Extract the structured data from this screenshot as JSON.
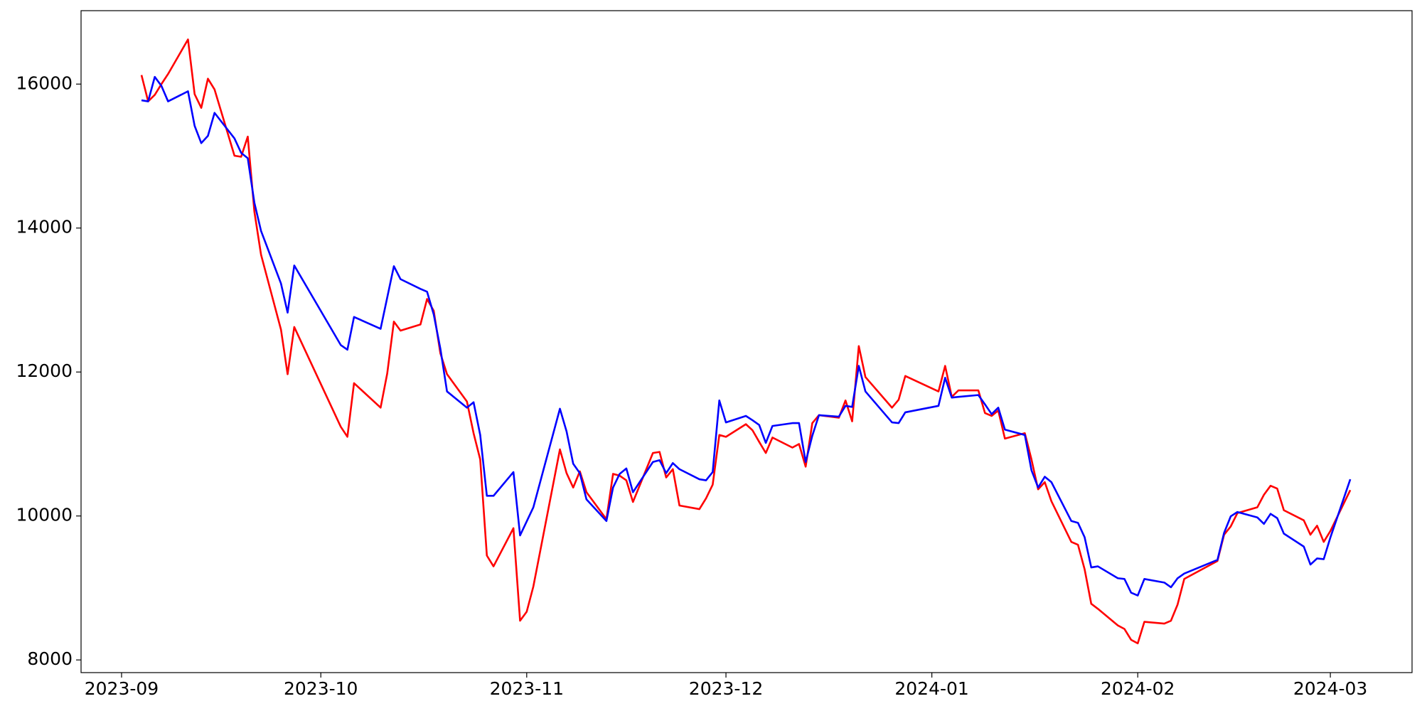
{
  "chart_data": {
    "type": "line",
    "x": [
      3,
      4,
      5,
      6,
      7,
      10,
      11,
      12,
      13,
      14,
      17,
      18,
      19,
      20,
      21,
      24,
      25,
      26,
      33,
      34,
      35,
      39,
      40,
      41,
      42,
      45,
      46,
      47,
      48,
      49,
      52,
      53,
      54,
      55,
      56,
      59,
      60,
      61,
      62,
      66,
      67,
      68,
      69,
      70,
      73,
      74,
      75,
      76,
      77,
      80,
      81,
      82,
      83,
      84,
      87,
      88,
      89,
      90,
      91,
      94,
      95,
      96,
      97,
      98,
      101,
      102,
      103,
      104,
      105,
      108,
      109,
      110,
      111,
      112,
      116,
      117,
      118,
      123,
      124,
      125,
      126,
      129,
      130,
      131,
      132,
      133,
      136,
      137,
      138,
      139,
      140,
      143,
      144,
      145,
      146,
      147,
      150,
      151,
      152,
      153,
      154,
      157,
      158,
      159,
      160,
      165,
      166,
      167,
      168,
      171,
      172,
      173,
      174,
      175,
      178,
      179,
      180,
      181,
      182,
      185
    ],
    "series": [
      {
        "color": "red",
        "values": [
          16126,
          15760,
          15850,
          16000,
          16140,
          16620,
          15860,
          15670,
          16075,
          15925,
          15005,
          14990,
          15270,
          14225,
          13630,
          12590,
          11970,
          12625,
          11240,
          11100,
          11845,
          11505,
          11980,
          12700,
          12575,
          12660,
          13015,
          12850,
          12260,
          11970,
          11590,
          11150,
          10785,
          9450,
          9300,
          9830,
          8545,
          8670,
          9020,
          10925,
          10595,
          10395,
          10620,
          10330,
          9955,
          10585,
          10560,
          10495,
          10195,
          10875,
          10890,
          10535,
          10650,
          10145,
          10095,
          10245,
          10435,
          11125,
          11100,
          11275,
          11190,
          11030,
          10875,
          11090,
          10950,
          11000,
          10685,
          11290,
          11400,
          11365,
          11605,
          11315,
          12360,
          11930,
          11505,
          11615,
          11945,
          11730,
          12085,
          11655,
          11745,
          11745,
          11430,
          11390,
          11465,
          11075,
          11150,
          10785,
          10370,
          10470,
          10205,
          9640,
          9600,
          9260,
          8780,
          8710,
          8480,
          8430,
          8280,
          8230,
          8530,
          8505,
          8545,
          8770,
          9125,
          9375,
          9740,
          9855,
          10040,
          10120,
          10295,
          10420,
          10380,
          10080,
          9940,
          9740,
          9865,
          9640,
          9790,
          10360
        ]
      },
      {
        "color": "blue",
        "values": [
          15775,
          15760,
          16100,
          15975,
          15760,
          15900,
          15420,
          15180,
          15280,
          15600,
          15245,
          15045,
          14970,
          14350,
          13960,
          13230,
          12825,
          13480,
          12375,
          12310,
          12765,
          12600,
          13035,
          13470,
          13290,
          13155,
          13115,
          12800,
          12325,
          11730,
          11505,
          11580,
          11125,
          10280,
          10280,
          10610,
          9730,
          9925,
          10120,
          11490,
          11175,
          10725,
          10595,
          10230,
          9930,
          10395,
          10585,
          10660,
          10330,
          10750,
          10775,
          10595,
          10735,
          10650,
          10510,
          10495,
          10610,
          11605,
          11300,
          11390,
          11330,
          11265,
          11015,
          11250,
          11290,
          11290,
          10750,
          11115,
          11400,
          11380,
          11530,
          11515,
          12085,
          11730,
          11300,
          11290,
          11440,
          11530,
          11920,
          11645,
          11655,
          11680,
          11550,
          11415,
          11505,
          11200,
          11125,
          10635,
          10395,
          10545,
          10470,
          9930,
          9905,
          9705,
          9285,
          9300,
          9135,
          9125,
          8935,
          8895,
          9125,
          9075,
          9010,
          9135,
          9200,
          9390,
          9765,
          9995,
          10055,
          9980,
          9890,
          10030,
          9970,
          9755,
          9575,
          9325,
          9410,
          9400,
          9700,
          10510
        ]
      }
    ],
    "xlim": [
      -6.1,
      194.3
    ],
    "xticks": [
      {
        "value": 0,
        "label": "2023-09"
      },
      {
        "value": 30,
        "label": "2023-10"
      },
      {
        "value": 61,
        "label": "2023-11"
      },
      {
        "value": 91,
        "label": "2023-12"
      },
      {
        "value": 122,
        "label": "2024-01"
      },
      {
        "value": 153,
        "label": "2024-02"
      },
      {
        "value": 182,
        "label": "2024-03"
      }
    ],
    "ylim": [
      7824,
      17020
    ],
    "yticks": [
      8000,
      10000,
      12000,
      14000,
      16000
    ],
    "grid": false
  }
}
